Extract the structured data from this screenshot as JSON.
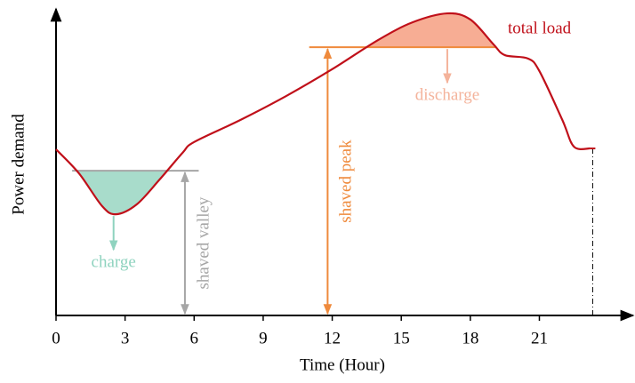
{
  "chart_data": {
    "type": "line",
    "xlabel": "Time (Hour)",
    "ylabel": "Power demand",
    "xlim": [
      0,
      25
    ],
    "xticks": [
      0,
      3,
      6,
      9,
      12,
      15,
      18,
      21
    ],
    "ylim": [
      0,
      100
    ],
    "x": [
      0,
      1,
      2,
      2.6,
      3.5,
      4.5,
      5.5,
      6,
      8,
      10,
      12,
      14,
      15.5,
      17,
      18,
      19,
      19.5,
      20.5,
      21,
      22,
      22.5,
      23.2
    ],
    "series": [
      {
        "name": "total load",
        "color": "#c0101a",
        "values": [
          54.5,
          46.6,
          35.9,
          33.2,
          36.4,
          44.6,
          53.4,
          56.9,
          64.1,
          72.0,
          80.8,
          90.4,
          96.2,
          99.1,
          97.1,
          89,
          85.4,
          84.3,
          80.2,
          64.1,
          55.4,
          54.8
        ]
      }
    ],
    "annotations": [
      {
        "label": "shaved valley",
        "level": 47.5,
        "from": 0.7,
        "to": 6.2,
        "x": 5.6,
        "color": "#a6a6a6",
        "fill": "#a8dccb"
      },
      {
        "label": "shaved peak",
        "level": 88,
        "from": 11,
        "to": 19.1,
        "x": 11.8,
        "color": "#ef8a3c",
        "fill": "#f7ad94"
      },
      {
        "label": "charge",
        "x": 2.5,
        "color": "#8fd3bf"
      },
      {
        "label": "discharge",
        "x": 17,
        "color": "#f4b39b"
      }
    ]
  }
}
